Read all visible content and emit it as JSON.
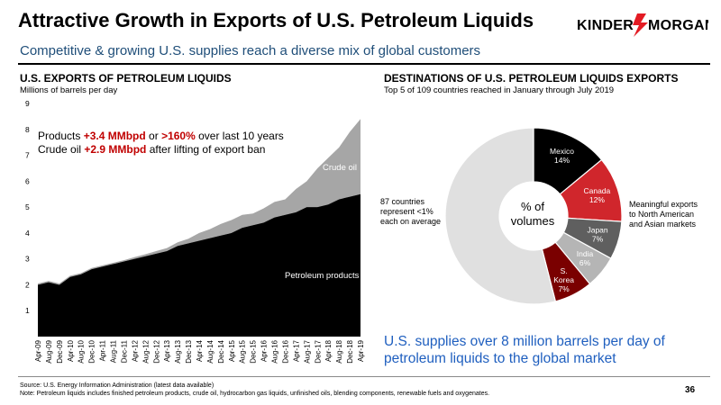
{
  "header": {
    "title": "Attractive Growth in Exports of U.S. Petroleum Liquids",
    "subtitle": "Competitive & growing U.S. supplies reach a diverse mix of global customers",
    "logo_text": "KINDER MORGAN"
  },
  "left_section": {
    "title": "U.S. EXPORTS OF PETROLEUM LIQUIDS",
    "unit_label": "Millions of barrels per day",
    "callout_line1_prefix": "Products ",
    "callout_line1_value1": "+3.4 MMbpd",
    "callout_line1_mid": " or ",
    "callout_line1_value2": ">160%",
    "callout_line1_suffix": " over last 10 years",
    "callout_line2_prefix": "Crude oil ",
    "callout_line2_value": "+2.9 MMbpd",
    "callout_line2_suffix": " after lifting of export ban"
  },
  "right_section": {
    "title": "DESTINATIONS OF U.S. PETROLEUM LIQUIDS EXPORTS",
    "subtitle": "Top 5 of 109 countries reached in January through July 2019",
    "center_line1": "% of",
    "center_line2": "volumes",
    "left_note": [
      "87 countries",
      "represent <1%",
      "each on average"
    ],
    "right_note": [
      "Meaningful exports",
      "to North American",
      "and Asian markets"
    ],
    "conclusion_line1": "U.S. supplies over 8 million barrels per day of",
    "conclusion_line2": "petroleum liquids to the global market"
  },
  "footer": {
    "source": "Source:  U.S. Energy Information Administration (latest data available)",
    "note": "Note:  Petroleum liquids includes finished petroleum products, crude oil, hydrocarbon gas liquids, unfinished oils, blending components, renewable fuels and oxygenates.",
    "page_number": "36"
  },
  "colors": {
    "accent_red": "#c00000",
    "subtitle_blue": "#1f4e79",
    "conclusion_blue": "#1f5fbf",
    "products": "#000000",
    "crude": "#a6a6a6",
    "mexico": "#000000",
    "canada": "#d0262c",
    "japan": "#5f5f5f",
    "india": "#b5b5b5",
    "korea": "#7a0000",
    "other": "#e0e0e0"
  },
  "chart_data": [
    {
      "type": "area",
      "title": "U.S. EXPORTS OF PETROLEUM LIQUIDS",
      "ylabel": "Millions of barrels per day",
      "ylim": [
        0,
        9
      ],
      "yticks": [
        "1",
        "2",
        "3",
        "4",
        "5",
        "6",
        "7",
        "8",
        "9"
      ],
      "x": [
        "Apr-09",
        "Aug-09",
        "Dec-09",
        "Apr-10",
        "Aug-10",
        "Dec-10",
        "Apr-11",
        "Aug-11",
        "Dec-11",
        "Apr-12",
        "Aug-12",
        "Dec-12",
        "Apr-13",
        "Aug-13",
        "Dec-13",
        "Apr-14",
        "Aug-14",
        "Dec-14",
        "Apr-15",
        "Aug-15",
        "Dec-15",
        "Apr-16",
        "Aug-16",
        "Dec-16",
        "Apr-17",
        "Aug-17",
        "Dec-17",
        "Apr-18",
        "Aug-18",
        "Dec-18",
        "Apr-19"
      ],
      "stacked": true,
      "series": [
        {
          "name": "Petroleum products",
          "values": [
            2.0,
            2.1,
            2.0,
            2.3,
            2.4,
            2.6,
            2.7,
            2.8,
            2.9,
            3.0,
            3.1,
            3.2,
            3.3,
            3.5,
            3.6,
            3.7,
            3.8,
            3.9,
            4.0,
            4.2,
            4.3,
            4.4,
            4.6,
            4.7,
            4.8,
            5.0,
            5.0,
            5.1,
            5.3,
            5.4,
            5.5
          ]
        },
        {
          "name": "Crude oil",
          "values": [
            0.05,
            0.05,
            0.05,
            0.05,
            0.05,
            0.05,
            0.05,
            0.05,
            0.05,
            0.07,
            0.08,
            0.1,
            0.12,
            0.14,
            0.18,
            0.3,
            0.35,
            0.45,
            0.5,
            0.5,
            0.45,
            0.55,
            0.6,
            0.6,
            0.9,
            1.0,
            1.5,
            1.8,
            2.0,
            2.5,
            2.9
          ]
        }
      ],
      "legend": "inline labels"
    },
    {
      "type": "pie",
      "style": "donut",
      "title": "DESTINATIONS OF U.S. PETROLEUM LIQUIDS EXPORTS",
      "slices": [
        {
          "name": "Mexico",
          "value": 14,
          "label": "14%"
        },
        {
          "name": "Canada",
          "value": 12,
          "label": "12%"
        },
        {
          "name": "Japan",
          "value": 7,
          "label": "7%"
        },
        {
          "name": "India",
          "value": 6,
          "label": "6%"
        },
        {
          "name": "S. Korea",
          "value": 7,
          "label": "7%"
        },
        {
          "name": "Other",
          "value": 54,
          "label": ""
        }
      ]
    }
  ]
}
